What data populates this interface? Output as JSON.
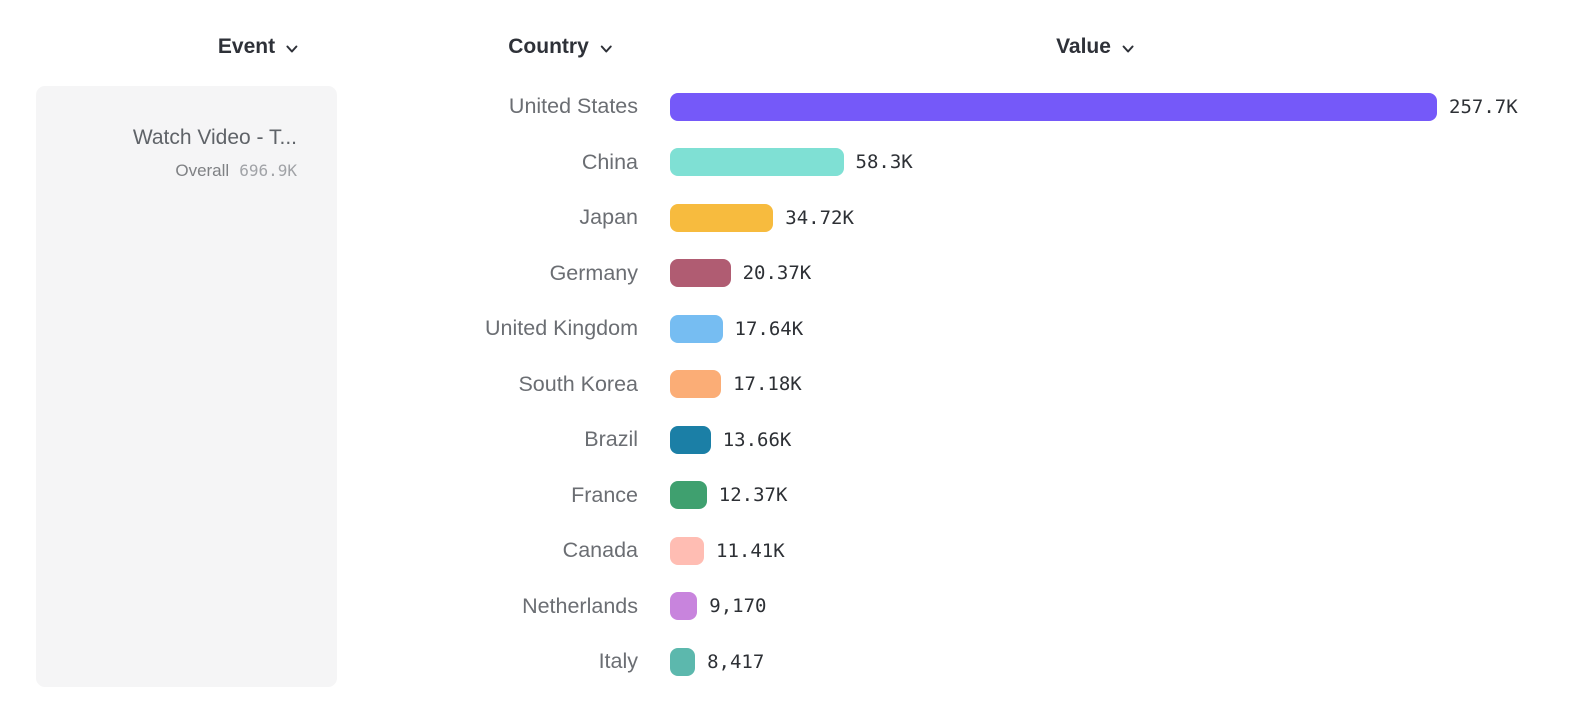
{
  "headers": {
    "event": "Event",
    "country": "Country",
    "value": "Value"
  },
  "event_card": {
    "title": "Watch Video - T...",
    "overall_label": "Overall",
    "overall_value": "696.9K"
  },
  "colors": {
    "header_text": "#2e3138",
    "country_label_text": "#6b6e73",
    "value_label_text": "#2d3035",
    "card_background": "#f5f5f6"
  },
  "chart_data": {
    "type": "bar",
    "orientation": "horizontal",
    "title": "",
    "xlabel": "Value",
    "ylabel": "Country",
    "xlim": [
      0,
      257700
    ],
    "grid": false,
    "categories": [
      "United States",
      "China",
      "Japan",
      "Germany",
      "United Kingdom",
      "South Korea",
      "Brazil",
      "France",
      "Canada",
      "Netherlands",
      "Italy"
    ],
    "values": [
      257700,
      58300,
      34720,
      20370,
      17640,
      17180,
      13660,
      12370,
      11410,
      9170,
      8417
    ],
    "value_labels": [
      "257.7K",
      "58.3K",
      "34.72K",
      "20.37K",
      "17.64K",
      "17.18K",
      "13.66K",
      "12.37K",
      "11.41K",
      "9,170",
      "8,417"
    ],
    "bar_colors": [
      "#7559f9",
      "#7fe0d4",
      "#f7bb3e",
      "#b05c72",
      "#76bdf2",
      "#fbad76",
      "#1b7fa6",
      "#3fa06f",
      "#ffbdb3",
      "#c884dd",
      "#5cb8ad"
    ]
  }
}
